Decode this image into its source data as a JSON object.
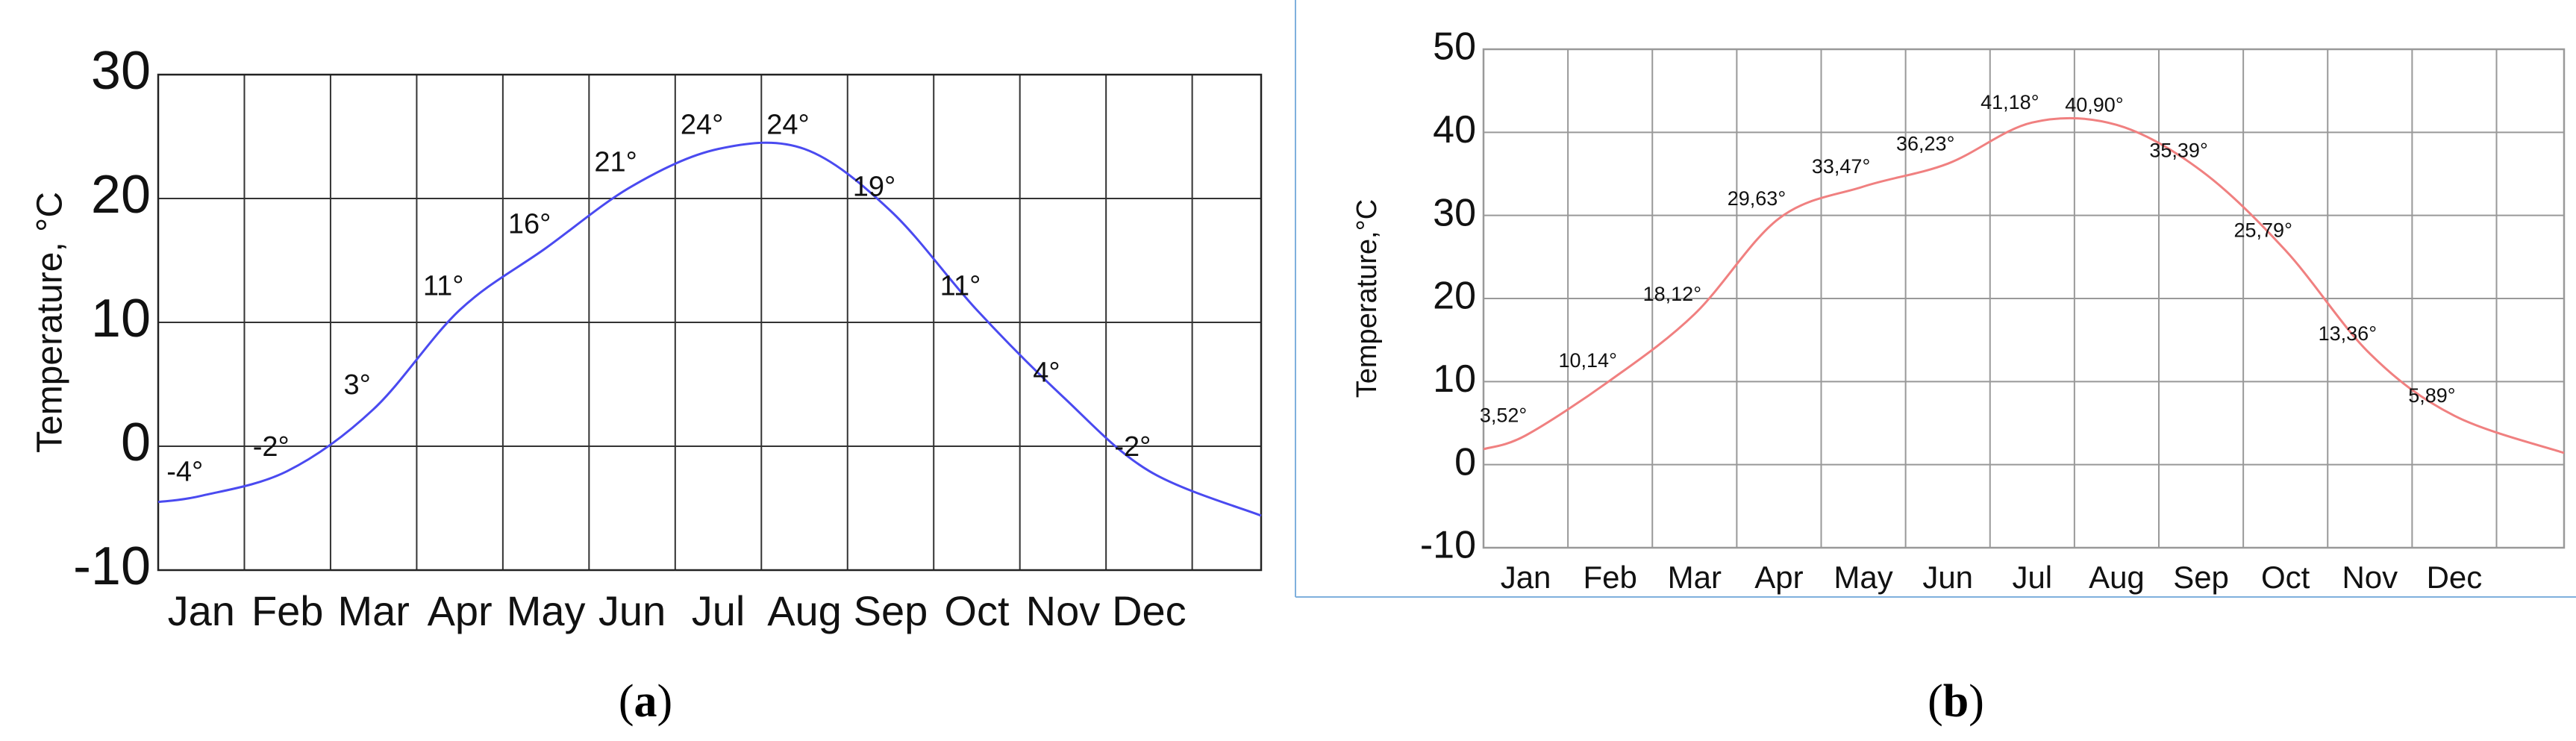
{
  "chart_data": [
    {
      "type": "line",
      "panel_label": "a",
      "ylabel": "Temperature, °C",
      "categories": [
        "Jan",
        "Feb",
        "Mar",
        "Apr",
        "May",
        "Jun",
        "Jul",
        "Aug",
        "Sep",
        "Oct",
        "Nov",
        "Dec"
      ],
      "ylim": [
        -10,
        30
      ],
      "yticks": [
        "30",
        "20",
        "10",
        "0",
        "-10"
      ],
      "ytick_values": [
        30,
        20,
        10,
        0,
        -10
      ],
      "grid": true,
      "line_color": "#4a4af0",
      "values": [
        -4,
        -2,
        3,
        11,
        16,
        21,
        24,
        24,
        19,
        11,
        4,
        -2
      ],
      "data_labels": [
        "-4°",
        "-2°",
        "3°",
        "11°",
        "16°",
        "21°",
        "24°",
        "24°",
        "19°",
        "11°",
        "4°",
        "-2°"
      ]
    },
    {
      "type": "line",
      "panel_label": "b",
      "ylabel": "Temperature,°C",
      "categories": [
        "Jan",
        "Feb",
        "Mar",
        "Apr",
        "May",
        "Jun",
        "Jul",
        "Aug",
        "Sep",
        "Oct",
        "Nov",
        "Dec"
      ],
      "ylim": [
        -10,
        50
      ],
      "yticks": [
        "50",
        "40",
        "30",
        "20",
        "10",
        "0",
        "-10"
      ],
      "ytick_values": [
        50,
        40,
        30,
        20,
        10,
        0,
        -10
      ],
      "grid": true,
      "line_color": "#f08080",
      "values": [
        3.52,
        10.14,
        18.12,
        29.63,
        33.47,
        36.23,
        41.18,
        40.9,
        35.39,
        25.79,
        13.36,
        5.89
      ],
      "data_labels": [
        "3,52°",
        "10,14°",
        "18,12°",
        "29,63°",
        "33,47°",
        "36,23°",
        "41,18°",
        "40,90°",
        "35,39°",
        "25,79°",
        "13,36°",
        "5,89°"
      ]
    }
  ]
}
